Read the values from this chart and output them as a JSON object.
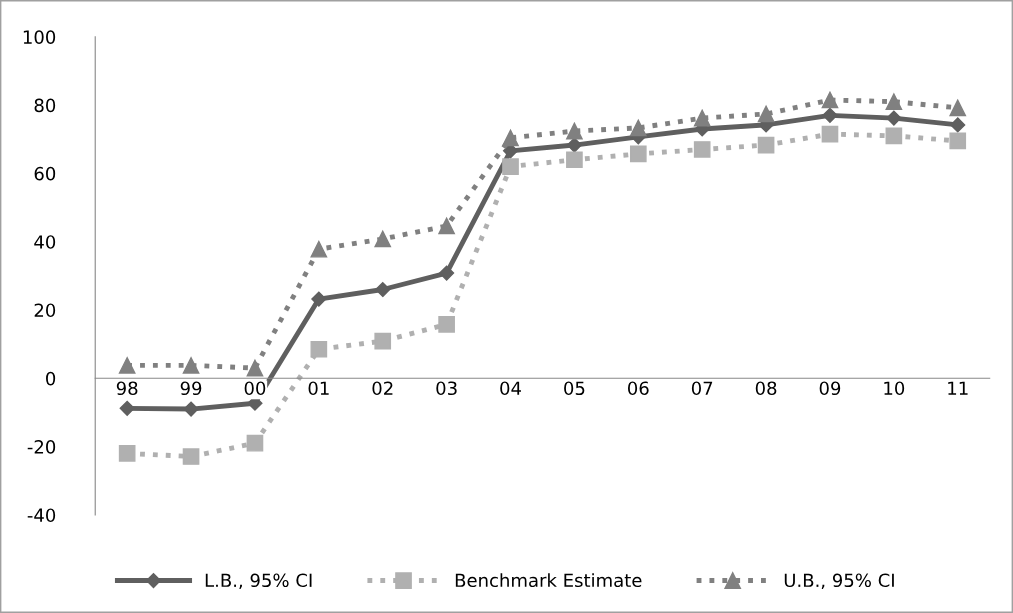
{
  "chart_data": {
    "type": "line",
    "categories": [
      "98",
      "99",
      "00",
      "01",
      "02",
      "03",
      "04",
      "05",
      "06",
      "07",
      "08",
      "09",
      "10",
      "11"
    ],
    "series": [
      {
        "name": "L.B., 95% CI",
        "color": "#5f5f5f",
        "marker": "diamond",
        "line_style": "solid",
        "values": [
          -8.8,
          -9,
          -7.3,
          23.2,
          26,
          30.8,
          66.6,
          68.3,
          70.7,
          73,
          74.2,
          77,
          76.2,
          74.2
        ]
      },
      {
        "name": "Benchmark Estimate",
        "color": "#b0b0b0",
        "marker": "square",
        "line_style": "dotted",
        "values": [
          -22,
          -22.9,
          -19,
          8.5,
          10.9,
          15.8,
          62,
          64,
          65.7,
          67,
          68.3,
          71.5,
          71,
          69.5
        ]
      },
      {
        "name": "U.B., 95% CI",
        "color": "#808080",
        "marker": "triangle",
        "line_style": "dotted",
        "values": [
          3.8,
          3.8,
          3,
          37.8,
          40.8,
          44.6,
          70.4,
          72.4,
          73.3,
          76.2,
          77.4,
          81.5,
          81,
          79.2
        ]
      }
    ],
    "ylim": [
      -40,
      100
    ],
    "yticks": [
      -40,
      -20,
      0,
      20,
      40,
      60,
      80,
      100
    ],
    "grid": false,
    "legend": "bottom"
  }
}
